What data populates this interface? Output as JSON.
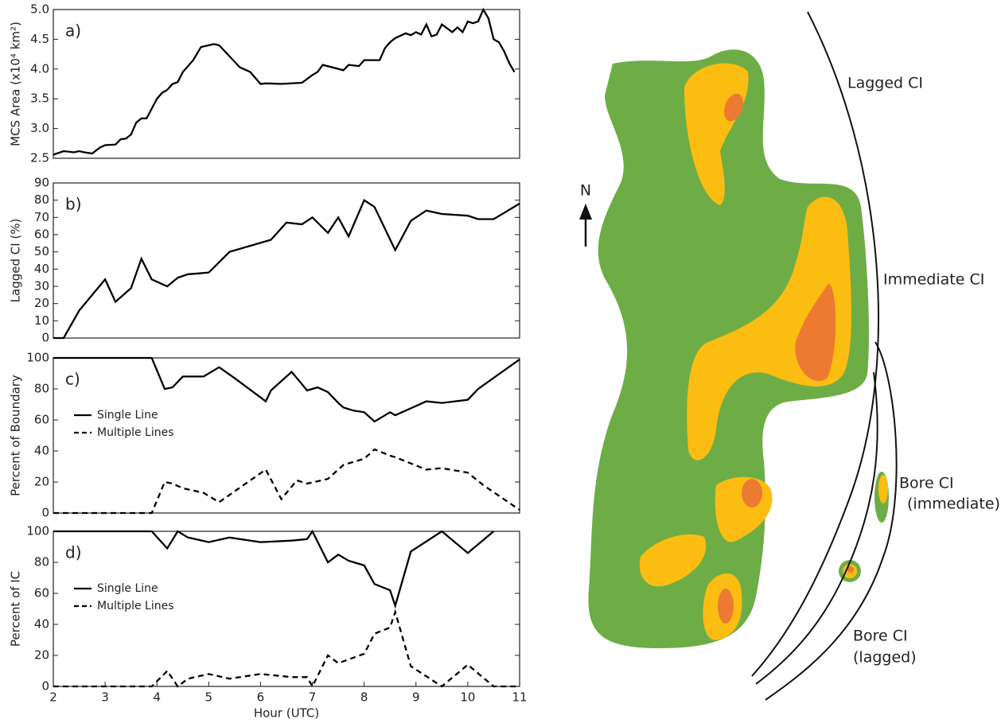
{
  "chart_data": [
    {
      "type": "line",
      "panel_label": "a)",
      "ylabel": "MCS Area (x10⁴ km²)",
      "color": "#000000",
      "x": [
        2.0,
        2.2,
        2.4,
        2.5,
        2.6,
        2.75,
        2.9,
        3.0,
        3.2,
        3.3,
        3.4,
        3.5,
        3.6,
        3.7,
        3.8,
        4.0,
        4.1,
        4.2,
        4.3,
        4.4,
        4.5,
        4.7,
        4.85,
        5.1,
        5.2,
        5.6,
        5.8,
        6.0,
        6.1,
        6.4,
        6.8,
        7.0,
        7.1,
        7.2,
        7.6,
        7.7,
        7.9,
        8.0,
        8.3,
        8.4,
        8.5,
        8.6,
        8.8,
        8.9,
        9.0,
        9.1,
        9.2,
        9.3,
        9.4,
        9.5,
        9.7,
        9.8,
        9.9,
        10.0,
        10.1,
        10.2,
        10.3,
        10.4,
        10.5,
        10.6,
        10.7,
        10.8,
        10.9
      ],
      "values": [
        2.56,
        2.62,
        2.6,
        2.62,
        2.6,
        2.58,
        2.68,
        2.72,
        2.73,
        2.82,
        2.83,
        2.9,
        3.1,
        3.17,
        3.17,
        3.5,
        3.6,
        3.65,
        3.75,
        3.78,
        3.95,
        4.15,
        4.37,
        4.42,
        4.4,
        4.03,
        3.95,
        3.75,
        3.76,
        3.75,
        3.77,
        3.9,
        3.95,
        4.07,
        3.98,
        4.07,
        4.05,
        4.15,
        4.15,
        4.35,
        4.45,
        4.52,
        4.6,
        4.57,
        4.62,
        4.58,
        4.75,
        4.55,
        4.58,
        4.75,
        4.62,
        4.7,
        4.62,
        4.8,
        4.77,
        4.8,
        5.0,
        4.85,
        4.5,
        4.45,
        4.3,
        4.1,
        3.95
      ],
      "xlim": [
        2,
        11
      ],
      "ylim": [
        2.5,
        5.0
      ],
      "yticks": [
        2.5,
        {
          "value": 3,
          "label": "3.0"
        },
        3.5,
        {
          "value": 4,
          "label": "4.0"
        },
        4.5,
        {
          "value": 5,
          "label": "5.0"
        }
      ]
    },
    {
      "type": "line",
      "panel_label": "b)",
      "ylabel": "Lagged CI (%)",
      "color": "#000000",
      "x": [
        2.0,
        2.2,
        2.5,
        3.0,
        3.2,
        3.5,
        3.7,
        3.9,
        4.2,
        4.4,
        4.6,
        5.0,
        5.2,
        5.4,
        6.2,
        6.5,
        6.8,
        7.0,
        7.3,
        7.5,
        7.7,
        8.0,
        8.2,
        8.6,
        8.9,
        9.2,
        9.5,
        10.0,
        10.2,
        10.5,
        11.0
      ],
      "values": [
        0,
        0,
        16,
        34,
        21,
        29,
        46,
        34,
        30,
        35,
        37,
        38,
        44,
        50,
        57,
        67,
        66,
        70,
        61,
        70,
        59,
        80,
        76,
        51,
        68,
        74,
        72,
        71,
        69,
        69,
        78
      ],
      "xlim": [
        2,
        11
      ],
      "ylim": [
        0,
        90
      ],
      "yticks": [
        0,
        10,
        20,
        30,
        40,
        50,
        60,
        70,
        80,
        90
      ]
    },
    {
      "type": "line",
      "panel_label": "c)",
      "ylabel": "Percent of Boundary",
      "xlim": [
        2,
        11
      ],
      "ylim": [
        0,
        100
      ],
      "yticks": [
        0,
        20,
        40,
        60,
        80,
        100
      ],
      "series": [
        {
          "name": "Single Line",
          "color": "#000000",
          "line_style": "solid",
          "x": [
            2,
            3,
            3.9,
            4.15,
            4.3,
            4.5,
            4.9,
            5.2,
            5.5,
            6.1,
            6.2,
            6.6,
            6.9,
            7.1,
            7.3,
            7.5,
            7.6,
            7.8,
            8.0,
            8.2,
            8.5,
            8.6,
            9.2,
            9.5,
            10.0,
            10.2,
            11.0
          ],
          "values": [
            100,
            100,
            100,
            80,
            81,
            88,
            88,
            94,
            87,
            72,
            79,
            91,
            79,
            81,
            78,
            71,
            68,
            66,
            65,
            59,
            65,
            63,
            72,
            71,
            73,
            80,
            99
          ]
        },
        {
          "name": "Multiple Lines",
          "color": "#000000",
          "line_style": "dashed",
          "x": [
            2,
            3.9,
            4.15,
            4.3,
            4.5,
            4.9,
            5.2,
            5.5,
            6.1,
            6.4,
            6.7,
            6.9,
            7.3,
            7.6,
            8.0,
            8.2,
            8.5,
            8.6,
            9.2,
            9.5,
            10.0,
            10.3,
            11.0
          ],
          "values": [
            0,
            0,
            20,
            19,
            16,
            13,
            7,
            14,
            28,
            9,
            21,
            19,
            22,
            31,
            35,
            41,
            37,
            36,
            28,
            29,
            26,
            18,
            2
          ]
        }
      ]
    },
    {
      "type": "line",
      "panel_label": "d)",
      "ylabel": "Percent of IC",
      "xlabel": "Hour (UTC)",
      "xlim": [
        2,
        11
      ],
      "ylim": [
        0,
        100
      ],
      "xticks": [
        2,
        3,
        4,
        5,
        6,
        7,
        8,
        9,
        10,
        11
      ],
      "yticks": [
        0,
        20,
        40,
        60,
        80,
        100
      ],
      "series": [
        {
          "name": "Single Line",
          "color": "#000000",
          "line_style": "solid",
          "x": [
            2,
            3,
            3.9,
            4.2,
            4.4,
            4.6,
            5.0,
            5.4,
            6.0,
            6.6,
            6.9,
            7.0,
            7.3,
            7.5,
            7.7,
            8.0,
            8.2,
            8.5,
            8.6,
            8.9,
            9.5,
            10.0,
            10.5
          ],
          "values": [
            100,
            100,
            100,
            89,
            100,
            96,
            93,
            96,
            93,
            94,
            95,
            100,
            80,
            85,
            81,
            78,
            66,
            62,
            52,
            87,
            100,
            86,
            100
          ]
        },
        {
          "name": "Multiple Lines",
          "color": "#000000",
          "line_style": "dashed",
          "x": [
            2,
            3.9,
            4.2,
            4.4,
            4.6,
            5.0,
            5.4,
            6.0,
            6.6,
            6.9,
            7.0,
            7.3,
            7.5,
            8.0,
            8.2,
            8.5,
            8.6,
            8.9,
            9.5,
            10.0,
            10.5,
            11.0
          ],
          "values": [
            0,
            0,
            10,
            0,
            5,
            8,
            5,
            8,
            6,
            6,
            0,
            20,
            15,
            21,
            34,
            38,
            48,
            13,
            0,
            14,
            0,
            0
          ]
        }
      ]
    }
  ],
  "diagram": {
    "north": "N",
    "lagged_ci": "Lagged CI",
    "immediate_ci": "Immediate CI",
    "bore_immediate": [
      "Bore CI",
      "(immediate)"
    ],
    "bore_lagged": [
      "Bore CI",
      "(lagged)"
    ]
  }
}
